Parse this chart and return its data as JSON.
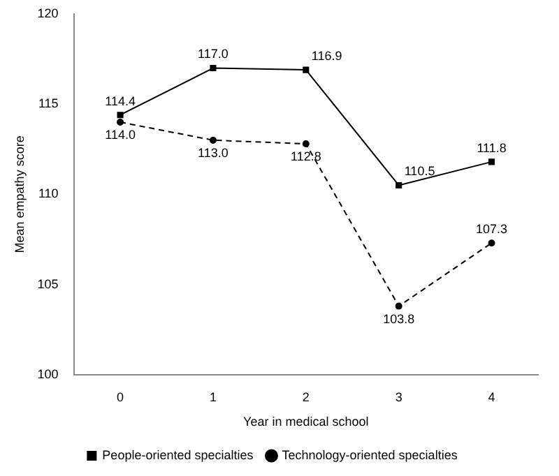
{
  "chart_data": {
    "type": "line",
    "xlabel": "Year in medical school",
    "ylabel": "Mean empathy score",
    "categories": [
      "0",
      "1",
      "2",
      "3",
      "4"
    ],
    "series": [
      {
        "name": "People-oriented specialties",
        "color": "#000000",
        "marker": "square",
        "line_style": "solid",
        "values": [
          114.4,
          117.0,
          116.9,
          110.5,
          111.8
        ],
        "value_labels": [
          "114.4",
          "117.0",
          "116.9",
          "110.5",
          "111.8"
        ]
      },
      {
        "name": "Technology-oriented specialties",
        "color": "#000000",
        "marker": "circle",
        "line_style": "dashed",
        "values": [
          114.0,
          113.0,
          112.8,
          103.8,
          107.3
        ],
        "value_labels": [
          "114.0",
          "113.0",
          "112.8",
          "103.8",
          "107.3"
        ]
      }
    ],
    "ylim": [
      100,
      120
    ],
    "yticks": [
      100,
      105,
      110,
      115,
      120
    ],
    "grid": false,
    "legend": "bottom"
  }
}
